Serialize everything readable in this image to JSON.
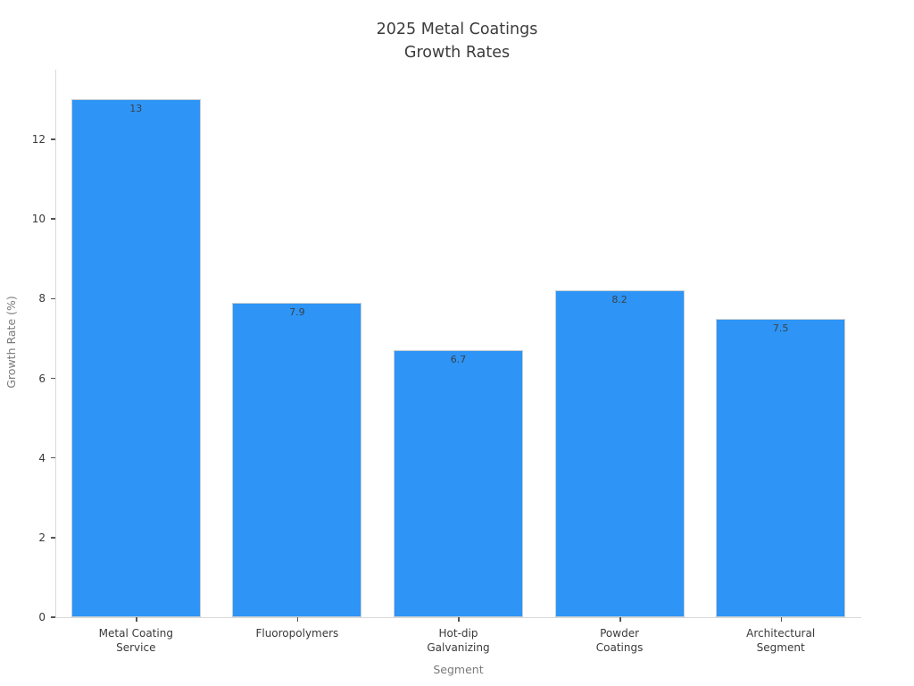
{
  "chart_data": {
    "type": "bar",
    "title": "2025 Metal Coatings\nGrowth Rates",
    "title_lines": [
      "2025 Metal Coatings",
      "Growth Rates"
    ],
    "xlabel": "Segment",
    "ylabel": "Growth Rate (%)",
    "categories": [
      "Metal Coating\nService",
      "Fluoropolymers",
      "Hot-dip\nGalvanizing",
      "Powder\nCoatings",
      "Architectural\nSegment"
    ],
    "values": [
      13,
      7.9,
      6.7,
      8.2,
      7.5
    ],
    "value_labels": [
      "13",
      "7.9",
      "6.7",
      "8.2",
      "7.5"
    ],
    "yticks": [
      0,
      2,
      4,
      6,
      8,
      10,
      12
    ],
    "ylim": [
      0,
      13.75
    ],
    "bar_color": "#2e94f5",
    "bar_edge_color": "#c6cfd6",
    "grid": false,
    "legend_position": "none"
  }
}
